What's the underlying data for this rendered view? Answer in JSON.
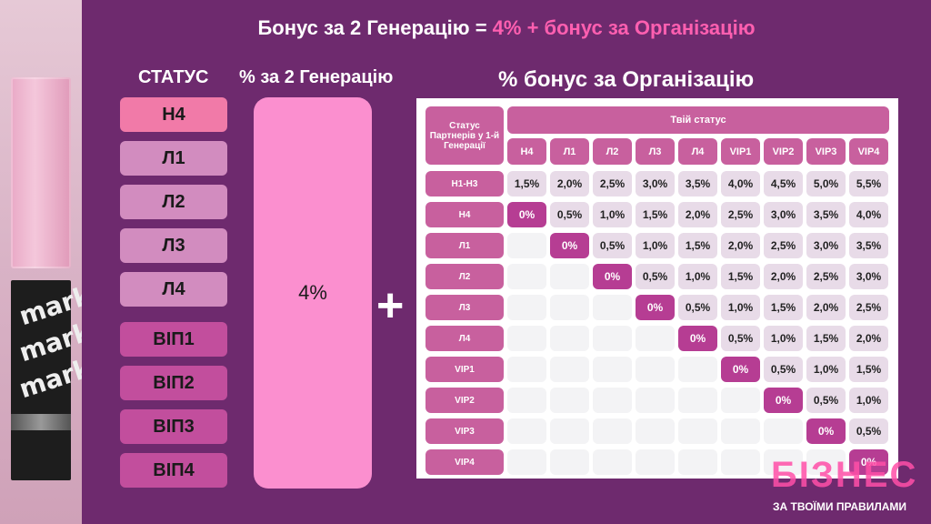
{
  "title": {
    "prefix": "Бонус за 2 Генерацію = ",
    "accent": "4% + бонус за Організацію"
  },
  "left_column": {
    "header": "СТАТУС",
    "statuses": [
      {
        "label": "Н4",
        "color": "#f17aa8"
      },
      {
        "label": "Л1",
        "color": "#d28cbf"
      },
      {
        "label": "Л2",
        "color": "#d28cbf"
      },
      {
        "label": "Л3",
        "color": "#d28cbf"
      },
      {
        "label": "Л4",
        "color": "#d28cbf"
      },
      {
        "label": "ВІП1",
        "color": "#c24e9d"
      },
      {
        "label": "ВІП2",
        "color": "#c24e9d"
      },
      {
        "label": "ВІП3",
        "color": "#c24e9d"
      },
      {
        "label": "ВІП4",
        "color": "#c24e9d"
      }
    ]
  },
  "generation": {
    "header": "% за 2 Генерацію",
    "value": "4%"
  },
  "plus_sign": "+",
  "org": {
    "title": "% бонус за Організацію",
    "corner_label": "Статус Партнерів у 1-й Генерації",
    "your_status_label": "Твій статус",
    "columns": [
      "Н4",
      "Л1",
      "Л2",
      "Л3",
      "Л4",
      "VIP1",
      "VIP2",
      "VIP3",
      "VIP4"
    ],
    "rows": [
      {
        "label": "Н1-Н3",
        "values": [
          "1,5%",
          "2,0%",
          "2,5%",
          "3,0%",
          "3,5%",
          "4,0%",
          "4,5%",
          "5,0%",
          "5,5%"
        ]
      },
      {
        "label": "Н4",
        "values": [
          "0%",
          "0,5%",
          "1,0%",
          "1,5%",
          "2,0%",
          "2,5%",
          "3,0%",
          "3,5%",
          "4,0%"
        ]
      },
      {
        "label": "Л1",
        "values": [
          "",
          "0%",
          "0,5%",
          "1,0%",
          "1,5%",
          "2,0%",
          "2,5%",
          "3,0%",
          "3,5%"
        ]
      },
      {
        "label": "Л2",
        "values": [
          "",
          "",
          "0%",
          "0,5%",
          "1,0%",
          "1,5%",
          "2,0%",
          "2,5%",
          "3,0%"
        ]
      },
      {
        "label": "Л3",
        "values": [
          "",
          "",
          "",
          "0%",
          "0,5%",
          "1,0%",
          "1,5%",
          "2,0%",
          "2,5%"
        ]
      },
      {
        "label": "Л4",
        "values": [
          "",
          "",
          "",
          "",
          "0%",
          "0,5%",
          "1,0%",
          "1,5%",
          "2,0%"
        ]
      },
      {
        "label": "VIP1",
        "values": [
          "",
          "",
          "",
          "",
          "",
          "0%",
          "0,5%",
          "1,0%",
          "1,5%"
        ]
      },
      {
        "label": "VIP2",
        "values": [
          "",
          "",
          "",
          "",
          "",
          "",
          "0%",
          "0,5%",
          "1,0%"
        ]
      },
      {
        "label": "VIP3",
        "values": [
          "",
          "",
          "",
          "",
          "",
          "",
          "",
          "0%",
          "0,5%"
        ]
      },
      {
        "label": "VIP4",
        "values": [
          "",
          "",
          "",
          "",
          "",
          "",
          "",
          "",
          "0%"
        ]
      }
    ]
  },
  "logo": {
    "big": "БІЗНЕС",
    "small": "ЗА ТВОЇМИ ПРАВИЛАМИ"
  },
  "lipstick_brand": "mark."
}
